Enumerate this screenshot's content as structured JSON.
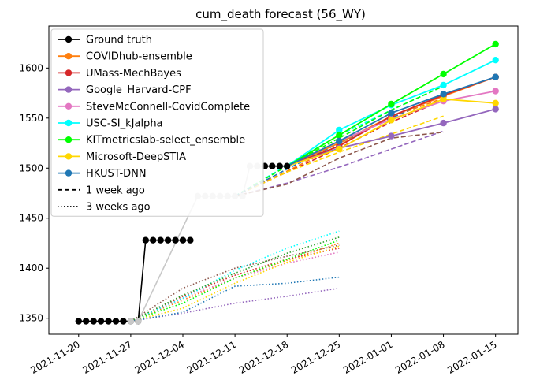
{
  "chart_data": {
    "type": "line",
    "title": "cum_death forecast (56_WY)",
    "xlabel": "",
    "ylabel": "",
    "x_ticks": [
      "2021-11-20",
      "2021-11-27",
      "2021-12-04",
      "2021-12-11",
      "2021-12-18",
      "2021-12-25",
      "2022-01-01",
      "2022-01-08",
      "2022-01-15"
    ],
    "y_ticks": [
      1350,
      1400,
      1450,
      1500,
      1550,
      1600
    ],
    "xlim": [
      "2021-11-16",
      "2022-01-18"
    ],
    "ylim": [
      1334,
      1642
    ],
    "grid": false,
    "legend_position": "top-left",
    "legend": [
      {
        "label": "Ground truth",
        "color": "#000000",
        "marker": true,
        "dash": "solid"
      },
      {
        "label": "COVIDhub-ensemble",
        "color": "#ff7f0e",
        "marker": true,
        "dash": "solid"
      },
      {
        "label": "UMass-MechBayes",
        "color": "#d62728",
        "marker": true,
        "dash": "solid"
      },
      {
        "label": "Google_Harvard-CPF",
        "color": "#9467bd",
        "marker": true,
        "dash": "solid"
      },
      {
        "label": "SteveMcConnell-CovidComplete",
        "color": "#e377c2",
        "marker": true,
        "dash": "solid"
      },
      {
        "label": "USC-SI_kJalpha",
        "color": "#00ffff",
        "marker": true,
        "dash": "solid"
      },
      {
        "label": "KITmetricslab-select_ensemble",
        "color": "#00ff00",
        "marker": true,
        "dash": "solid"
      },
      {
        "label": "Microsoft-DeepSTIA",
        "color": "#ffd700",
        "marker": true,
        "dash": "solid"
      },
      {
        "label": "HKUST-DNN",
        "color": "#1f77b4",
        "marker": true,
        "dash": "solid"
      },
      {
        "label": "1 week ago",
        "color": "#000000",
        "marker": false,
        "dash": "dashed"
      },
      {
        "label": "3 weeks ago",
        "color": "#000000",
        "marker": false,
        "dash": "dotted"
      }
    ],
    "ground_truth_black": {
      "x": [
        "2021-11-20",
        "2021-11-21",
        "2021-11-22",
        "2021-11-23",
        "2021-11-24",
        "2021-11-25",
        "2021-11-26",
        "2021-11-27",
        "2021-11-28",
        "2021-11-29",
        "2021-11-30",
        "2021-12-01",
        "2021-12-02",
        "2021-12-03",
        "2021-12-04",
        "2021-12-05"
      ],
      "y": [
        1347,
        1347,
        1347,
        1347,
        1347,
        1347,
        1347,
        1347,
        1347,
        1428,
        1428,
        1428,
        1428,
        1428,
        1428,
        1428
      ]
    },
    "ground_truth_gray": {
      "color": "#c8c8c8",
      "x": [
        "2021-11-27",
        "2021-11-28",
        "2021-12-06",
        "2021-12-07",
        "2021-12-08",
        "2021-12-09",
        "2021-12-10",
        "2021-12-11",
        "2021-12-12",
        "2021-12-13",
        "2021-12-14"
      ],
      "y": [
        1347,
        1347,
        1472,
        1472,
        1472,
        1472,
        1472,
        1472,
        1472,
        1502,
        1502
      ]
    },
    "ground_truth_black_late": {
      "x": [
        "2021-12-15",
        "2021-12-16",
        "2021-12-17",
        "2021-12-18"
      ],
      "y": [
        1502,
        1502,
        1502,
        1502
      ]
    },
    "current_forecasts": [
      {
        "name": "COVIDhub-ensemble",
        "color": "#ff7f0e",
        "x": [
          "2021-12-18",
          "2021-12-25",
          "2022-01-01",
          "2022-01-08",
          "2022-01-15"
        ],
        "y": [
          1502,
          1525,
          1552,
          1572,
          1591
        ]
      },
      {
        "name": "UMass-MechBayes",
        "color": "#d62728",
        "x": [
          "2021-12-18",
          "2021-12-25",
          "2022-01-01",
          "2022-01-08",
          "2022-01-15"
        ],
        "y": [
          1502,
          1522,
          1552,
          1573,
          1591
        ]
      },
      {
        "name": "Google_Harvard-CPF",
        "color": "#9467bd",
        "x": [
          "2021-12-18",
          "2021-12-25",
          "2022-01-01",
          "2022-01-08",
          "2022-01-15"
        ],
        "y": [
          1502,
          1520,
          1532,
          1545,
          1559
        ]
      },
      {
        "name": "SteveMcConnell-CovidComplete",
        "color": "#e377c2",
        "x": [
          "2021-12-18",
          "2021-12-25",
          "2022-01-01",
          "2022-01-08",
          "2022-01-15"
        ],
        "y": [
          1502,
          1527,
          1549,
          1567,
          1577
        ]
      },
      {
        "name": "USC-SI_kJalpha",
        "color": "#00ffff",
        "x": [
          "2021-12-18",
          "2021-12-25",
          "2022-01-01",
          "2022-01-08",
          "2022-01-15"
        ],
        "y": [
          1502,
          1538,
          1563,
          1583,
          1608
        ]
      },
      {
        "name": "KITmetricslab-select_ensemble",
        "color": "#00ff00",
        "x": [
          "2021-12-18",
          "2021-12-25",
          "2022-01-01",
          "2022-01-08",
          "2022-01-15"
        ],
        "y": [
          1502,
          1533,
          1564,
          1594,
          1624
        ]
      },
      {
        "name": "Microsoft-DeepSTIA",
        "color": "#ffd700",
        "x": [
          "2021-12-18",
          "2021-12-25",
          "2022-01-01",
          "2022-01-08",
          "2022-01-15"
        ],
        "y": [
          1502,
          1519,
          1548,
          1569,
          1565
        ]
      },
      {
        "name": "HKUST-DNN",
        "color": "#1f77b4",
        "x": [
          "2021-12-18",
          "2021-12-25",
          "2022-01-01",
          "2022-01-08",
          "2022-01-15"
        ],
        "y": [
          1502,
          1527,
          1555,
          1574,
          1591
        ]
      }
    ],
    "one_week_ago": [
      {
        "color": "#ff7f0e",
        "x": [
          "2021-12-11",
          "2021-12-18",
          "2021-12-25",
          "2022-01-01",
          "2022-01-08"
        ],
        "y": [
          1472,
          1497,
          1523,
          1551,
          1570
        ]
      },
      {
        "color": "#d62728",
        "x": [
          "2021-12-11",
          "2021-12-18",
          "2021-12-25",
          "2022-01-01",
          "2022-01-08"
        ],
        "y": [
          1472,
          1496,
          1520,
          1546,
          1568
        ]
      },
      {
        "color": "#9467bd",
        "x": [
          "2021-12-11",
          "2021-12-18",
          "2021-12-25",
          "2022-01-01",
          "2022-01-08"
        ],
        "y": [
          1472,
          1485,
          1501,
          1519,
          1537
        ]
      },
      {
        "color": "#8c564b",
        "x": [
          "2021-12-11",
          "2021-12-18",
          "2021-12-25",
          "2022-01-01",
          "2022-01-08"
        ],
        "y": [
          1472,
          1484,
          1510,
          1530,
          1536
        ]
      },
      {
        "color": "#00ffff",
        "x": [
          "2021-12-11",
          "2021-12-18",
          "2021-12-25",
          "2022-01-01",
          "2022-01-08"
        ],
        "y": [
          1472,
          1503,
          1533,
          1558,
          1582
        ]
      },
      {
        "color": "#00ff00",
        "x": [
          "2021-12-11",
          "2021-12-18",
          "2021-12-25",
          "2022-01-01",
          "2022-01-08"
        ],
        "y": [
          1472,
          1502,
          1530,
          1558,
          1582
        ]
      },
      {
        "color": "#ffd700",
        "x": [
          "2021-12-11",
          "2021-12-18",
          "2021-12-25",
          "2022-01-01",
          "2022-01-08"
        ],
        "y": [
          1472,
          1496,
          1516,
          1534,
          1552
        ]
      },
      {
        "color": "#1f77b4",
        "x": [
          "2021-12-11",
          "2021-12-18",
          "2021-12-25",
          "2022-01-01",
          "2022-01-08"
        ],
        "y": [
          1472,
          1499,
          1525,
          1550,
          1574
        ]
      }
    ],
    "three_weeks_ago": [
      {
        "color": "#ff7f0e",
        "x": [
          "2021-11-27",
          "2021-12-04",
          "2021-12-11",
          "2021-12-18",
          "2021-12-25"
        ],
        "y": [
          1347,
          1368,
          1390,
          1408,
          1425
        ]
      },
      {
        "color": "#d62728",
        "x": [
          "2021-11-27",
          "2021-12-04",
          "2021-12-11",
          "2021-12-18",
          "2021-12-25"
        ],
        "y": [
          1347,
          1372,
          1393,
          1409,
          1420
        ]
      },
      {
        "color": "#9467bd",
        "x": [
          "2021-11-27",
          "2021-12-04",
          "2021-12-11",
          "2021-12-18",
          "2021-12-25"
        ],
        "y": [
          1347,
          1355,
          1365,
          1372,
          1380
        ]
      },
      {
        "color": "#8c564b",
        "x": [
          "2021-11-27",
          "2021-12-04",
          "2021-12-11",
          "2021-12-18",
          "2021-12-25"
        ],
        "y": [
          1347,
          1380,
          1400,
          1412,
          1423
        ]
      },
      {
        "color": "#e377c2",
        "x": [
          "2021-11-27",
          "2021-12-04",
          "2021-12-11",
          "2021-12-18",
          "2021-12-25"
        ],
        "y": [
          1347,
          1370,
          1390,
          1405,
          1416
        ]
      },
      {
        "color": "#00ffff",
        "x": [
          "2021-11-27",
          "2021-12-04",
          "2021-12-11",
          "2021-12-18",
          "2021-12-25"
        ],
        "y": [
          1347,
          1370,
          1398,
          1420,
          1437
        ]
      },
      {
        "color": "#00ff00",
        "x": [
          "2021-11-27",
          "2021-12-04",
          "2021-12-11",
          "2021-12-18",
          "2021-12-25"
        ],
        "y": [
          1347,
          1365,
          1390,
          1409,
          1428
        ]
      },
      {
        "color": "#ffd700",
        "x": [
          "2021-11-27",
          "2021-12-04",
          "2021-12-11",
          "2021-12-18",
          "2021-12-25"
        ],
        "y": [
          1347,
          1360,
          1385,
          1406,
          1422
        ]
      },
      {
        "color": "#2ca02c",
        "x": [
          "2021-11-27",
          "2021-12-04",
          "2021-12-11",
          "2021-12-18",
          "2021-12-25"
        ],
        "y": [
          1347,
          1373,
          1395,
          1415,
          1431
        ]
      },
      {
        "color": "#1f77b4",
        "x": [
          "2021-11-27",
          "2021-12-04",
          "2021-12-11",
          "2021-12-18",
          "2021-12-25"
        ],
        "y": [
          1347,
          1356,
          1382,
          1385,
          1391
        ]
      }
    ]
  }
}
